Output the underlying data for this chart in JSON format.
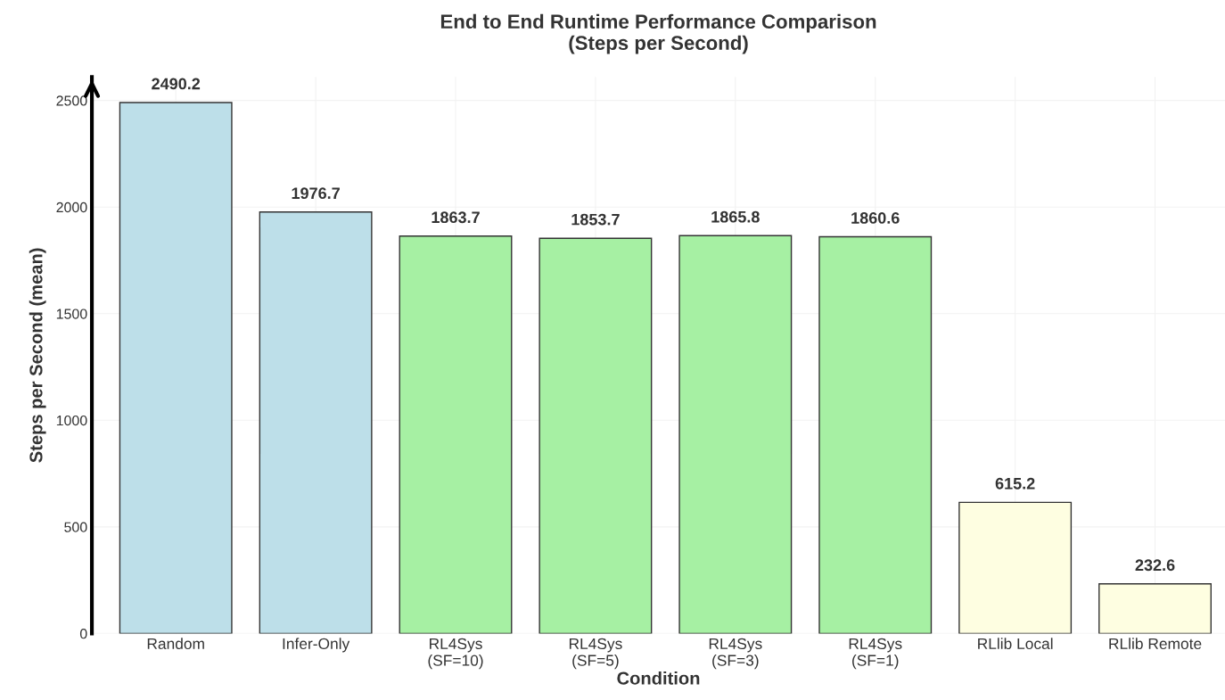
{
  "chart_data": {
    "type": "bar",
    "title": "End to End Runtime Performance Comparison\n(Steps per Second)",
    "xlabel": "Condition",
    "ylabel": "Steps per Second (mean)",
    "categories": [
      "Random",
      "Infer-Only",
      "RL4Sys\n(SF=10)",
      "RL4Sys\n(SF=5)",
      "RL4Sys\n(SF=3)",
      "RL4Sys\n(SF=1)",
      "RLlib Local",
      "RLlib Remote"
    ],
    "values": [
      2490.2,
      1976.7,
      1863.7,
      1853.7,
      1865.8,
      1860.6,
      615.2,
      232.6
    ],
    "colors": [
      "#bddfe9",
      "#bddfe9",
      "#a6f0a3",
      "#a6f0a3",
      "#a6f0a3",
      "#a6f0a3",
      "#fefee1",
      "#fefee1"
    ],
    "data_labels": true,
    "ylim": [
      0,
      2610
    ],
    "yticks": [
      0,
      500,
      1000,
      1500,
      2000,
      2500
    ],
    "grid": true
  }
}
